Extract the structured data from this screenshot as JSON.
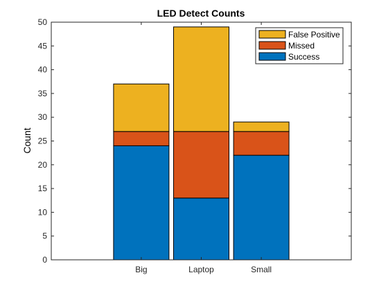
{
  "chart_data": {
    "type": "bar",
    "stacked": true,
    "title": "LED Detect Counts",
    "xlabel": "",
    "ylabel": "Count",
    "categories": [
      "Big",
      "Laptop",
      "Small"
    ],
    "ylim": [
      0,
      50
    ],
    "yticks": [
      0,
      5,
      10,
      15,
      20,
      25,
      30,
      35,
      40,
      45,
      50
    ],
    "series": [
      {
        "name": "Success",
        "values": [
          24,
          13,
          22
        ],
        "color": "#0072BD"
      },
      {
        "name": "Missed",
        "values": [
          3,
          14,
          5
        ],
        "color": "#D95319"
      },
      {
        "name": "False Positive",
        "values": [
          10,
          22,
          2
        ],
        "color": "#EDB120"
      }
    ],
    "legend_position": "top-right",
    "legend_order": [
      "False Positive",
      "Missed",
      "Success"
    ],
    "grid": false
  }
}
